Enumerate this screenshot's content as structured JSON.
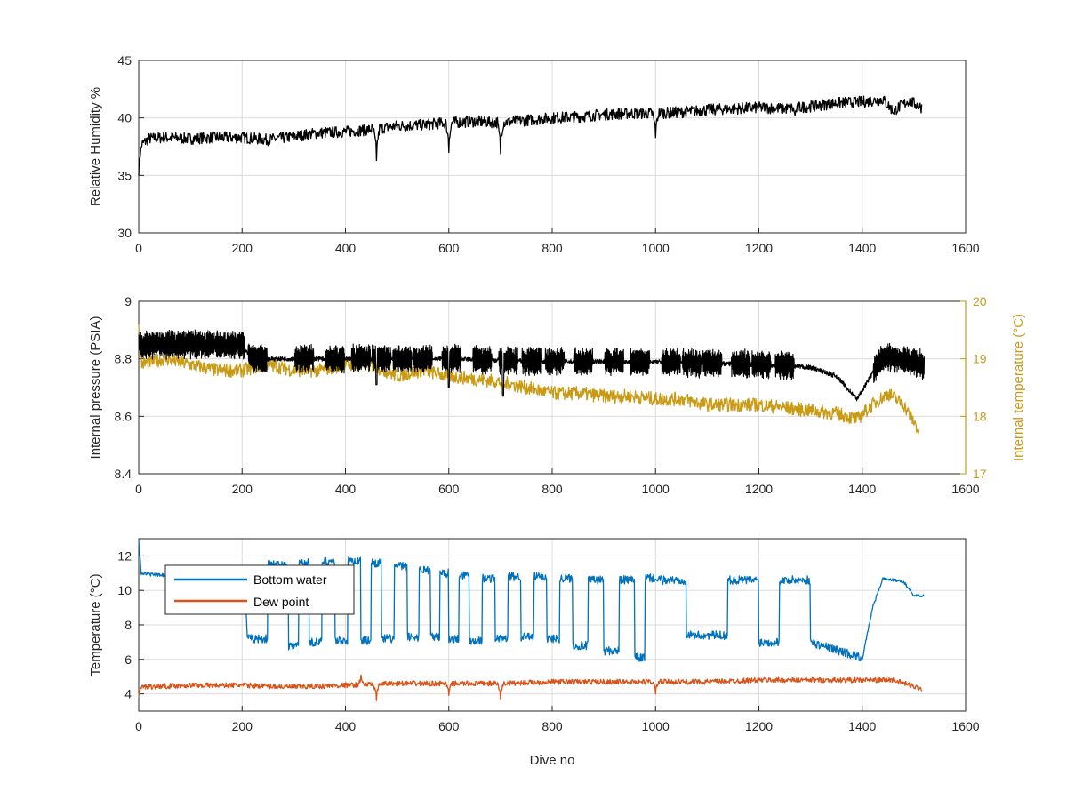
{
  "colors": {
    "black": "#000000",
    "blue": "#0072BD",
    "orange": "#D95319",
    "gold": "#C99A14",
    "grid": "#DCDCDC",
    "axis": "#262626"
  },
  "chart_data": [
    {
      "type": "line",
      "xlabel": "",
      "ylabel": "Relative Humidity %",
      "xlim": [
        0,
        1600
      ],
      "ylim": [
        30,
        45
      ],
      "xticks": [
        0,
        200,
        400,
        600,
        800,
        1000,
        1200,
        1400,
        1600
      ],
      "yticks": [
        30,
        35,
        40,
        45
      ],
      "grid": true,
      "series": [
        {
          "color": "#000000",
          "x": [
            0,
            20,
            50,
            100,
            150,
            200,
            250,
            300,
            350,
            400,
            450,
            500,
            550,
            600,
            650,
            700,
            750,
            800,
            850,
            900,
            950,
            1000,
            1050,
            1100,
            1150,
            1200,
            1250,
            1300,
            1350,
            1400,
            1440,
            1460,
            1490,
            1515
          ],
          "y": [
            37.5,
            38.2,
            38.3,
            38.2,
            38.3,
            38.3,
            38.1,
            38.4,
            38.7,
            38.8,
            39.0,
            39.3,
            39.4,
            39.6,
            39.7,
            39.6,
            39.8,
            40.0,
            40.1,
            40.3,
            40.4,
            40.4,
            40.5,
            40.7,
            40.8,
            40.9,
            40.8,
            41.0,
            41.3,
            41.4,
            41.6,
            40.6,
            41.5,
            40.9
          ],
          "noise": 0.5,
          "spikes": [
            [
              0,
              35.0
            ],
            [
              460,
              36.3
            ],
            [
              600,
              37.0
            ],
            [
              700,
              36.9
            ],
            [
              1000,
              38.3
            ],
            [
              1270,
              40.2
            ]
          ]
        }
      ]
    },
    {
      "type": "line",
      "xlabel": "",
      "ylabel": "Internal pressure (PSIA)",
      "y2label": "Internal temperature (°C)",
      "xlim": [
        0,
        1600
      ],
      "ylim": [
        8.4,
        9.0
      ],
      "y2lim": [
        17,
        20
      ],
      "xticks": [
        0,
        200,
        400,
        600,
        800,
        1000,
        1200,
        1400,
        1600
      ],
      "yticks": [
        8.4,
        8.6,
        8.8,
        9.0
      ],
      "yticklabels": [
        "8.4",
        "8.6",
        "8.8",
        "9"
      ],
      "y2ticks": [
        17,
        18,
        19,
        20
      ],
      "grid": true,
      "series": [
        {
          "color": "#000000",
          "axis": "left",
          "x": [
            0,
            200,
            220,
            400,
            600,
            800,
            1000,
            1200,
            1300,
            1350,
            1390,
            1410,
            1440,
            1520
          ],
          "y": [
            8.85,
            8.85,
            8.8,
            8.8,
            8.8,
            8.79,
            8.79,
            8.78,
            8.77,
            8.74,
            8.66,
            8.72,
            8.81,
            8.78
          ],
          "noise": 0.008,
          "oscillation": {
            "x_start": 0,
            "x_end": 1520,
            "pulse_centers": [
              0,
              230,
              320,
              380,
              430,
              470,
              510,
              550,
              605,
              665,
              715,
              760,
              805,
              860,
              920,
              970,
              1030,
              1070,
              1110,
              1165,
              1205,
              1250,
              1440,
              1480,
              1510
            ],
            "pulse_half_width": 18,
            "amplitude": 0.045
          },
          "spikes": [
            [
              460,
              8.71
            ],
            [
              600,
              8.7
            ],
            [
              705,
              8.67
            ]
          ]
        },
        {
          "color": "#C99A14",
          "axis": "right",
          "x": [
            0,
            50,
            100,
            150,
            200,
            250,
            300,
            350,
            400,
            450,
            500,
            550,
            600,
            650,
            700,
            750,
            800,
            850,
            900,
            950,
            1000,
            1050,
            1100,
            1150,
            1200,
            1250,
            1300,
            1350,
            1390,
            1420,
            1450,
            1480,
            1510
          ],
          "y": [
            18.9,
            19.0,
            18.9,
            18.8,
            18.8,
            18.9,
            18.8,
            18.8,
            18.9,
            18.9,
            18.7,
            18.8,
            18.7,
            18.65,
            18.6,
            18.5,
            18.4,
            18.4,
            18.35,
            18.35,
            18.3,
            18.3,
            18.2,
            18.2,
            18.2,
            18.15,
            18.1,
            18.05,
            17.95,
            18.2,
            18.4,
            18.2,
            17.75
          ],
          "noise": 0.12,
          "spikes": [
            [
              0,
              19.6
            ],
            [
              705,
              18.4
            ],
            [
              1510,
              17.7
            ]
          ]
        }
      ]
    },
    {
      "type": "line",
      "xlabel": "Dive no",
      "ylabel": "Temperature (°C)",
      "xlim": [
        0,
        1600
      ],
      "ylim": [
        3,
        13
      ],
      "xticks": [
        0,
        200,
        400,
        600,
        800,
        1000,
        1200,
        1400,
        1600
      ],
      "yticks": [
        4,
        6,
        8,
        10,
        12
      ],
      "grid": true,
      "legend": {
        "position": "top-left"
      },
      "series": [
        {
          "name": "Bottom water",
          "color": "#0072BD",
          "x": [
            0,
            5,
            30,
            100,
            150,
            205
          ],
          "y": [
            12.9,
            11.0,
            10.9,
            10.8,
            10.8,
            10.7
          ],
          "noise": 0.1,
          "after": {
            "x_start": 210,
            "high": [
              11.5,
              11.6,
              11.7,
              11.7,
              11.6,
              11.4,
              11.2,
              11.0,
              10.9,
              10.7,
              10.8,
              10.8,
              10.7,
              10.6,
              10.6,
              10.7
            ],
            "low": [
              7.2,
              6.8,
              7.0,
              7.1,
              7.1,
              7.2,
              7.3,
              7.3,
              7.2,
              7.1,
              7.2,
              7.3,
              7.2,
              6.8,
              6.5,
              6.1
            ],
            "breakpoints": [
              210,
              290,
              330,
              380,
              430,
              470,
              520,
              565,
              600,
              640,
              690,
              740,
              790,
              840,
              900,
              960,
              1000
            ],
            "recovery": {
              "x": [
                1400,
                1420,
                1440,
                1480,
                1500,
                1520
              ],
              "y": [
                6.0,
                9.0,
                10.7,
                10.5,
                9.7,
                9.7
              ]
            },
            "noise": 0.25
          }
        },
        {
          "name": "Dew point",
          "color": "#D95319",
          "x": [
            0,
            100,
            200,
            300,
            400,
            500,
            600,
            700,
            800,
            900,
            1000,
            1100,
            1200,
            1300,
            1400,
            1460,
            1515
          ],
          "y": [
            4.4,
            4.5,
            4.5,
            4.4,
            4.5,
            4.6,
            4.6,
            4.6,
            4.7,
            4.7,
            4.7,
            4.7,
            4.8,
            4.8,
            4.8,
            4.8,
            4.3
          ],
          "noise": 0.15,
          "spikes": [
            [
              0,
              3.8
            ],
            [
              430,
              5.1
            ],
            [
              460,
              3.6
            ],
            [
              600,
              3.9
            ],
            [
              700,
              3.7
            ],
            [
              1000,
              4.0
            ]
          ]
        }
      ]
    }
  ]
}
